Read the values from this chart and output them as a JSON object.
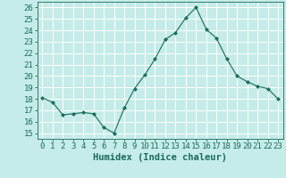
{
  "x": [
    0,
    1,
    2,
    3,
    4,
    5,
    6,
    7,
    8,
    9,
    10,
    11,
    12,
    13,
    14,
    15,
    16,
    17,
    18,
    19,
    20,
    21,
    22,
    23
  ],
  "y": [
    18.1,
    17.7,
    16.6,
    16.7,
    16.8,
    16.7,
    15.5,
    15.0,
    17.2,
    18.9,
    20.1,
    21.5,
    23.2,
    23.8,
    25.1,
    26.0,
    24.1,
    23.3,
    21.5,
    20.0,
    19.5,
    19.1,
    18.9,
    18.0
  ],
  "line_color": "#1a6b5a",
  "marker": "D",
  "marker_size": 2.2,
  "bg_color": "#c5ece8",
  "grid_color": "#ffffff",
  "ylabel_values": [
    15,
    16,
    17,
    18,
    19,
    20,
    21,
    22,
    23,
    24,
    25,
    26
  ],
  "ylim": [
    14.5,
    26.5
  ],
  "xlim": [
    -0.5,
    23.5
  ],
  "xlabel": "Humidex (Indice chaleur)",
  "xlabel_fontsize": 7.5,
  "tick_fontsize": 6.5
}
